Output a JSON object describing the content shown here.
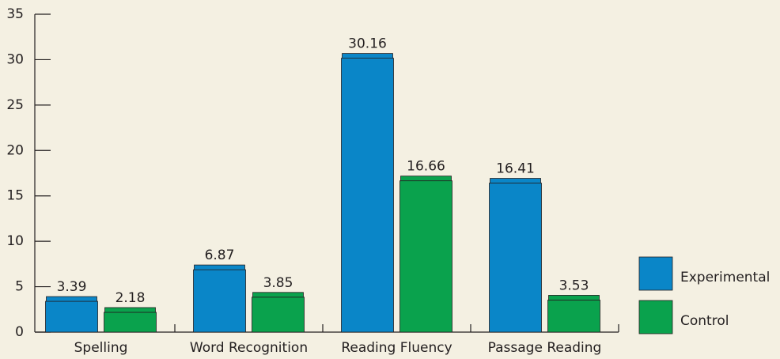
{
  "chart_data": {
    "type": "bar",
    "categories": [
      "Spelling",
      "Word Recognition",
      "Reading Fluency",
      "Passage Reading"
    ],
    "series": [
      {
        "name": "Experimental",
        "color": "#0a86c8",
        "values": [
          3.39,
          6.87,
          30.16,
          16.41
        ]
      },
      {
        "name": "Control",
        "color": "#0aa24d",
        "values": [
          2.18,
          3.85,
          16.66,
          3.53
        ]
      }
    ],
    "ylim": [
      0,
      35
    ],
    "yticks": [
      0,
      5,
      10,
      15,
      20,
      25,
      30,
      35
    ],
    "grid": false,
    "legend": "right"
  }
}
